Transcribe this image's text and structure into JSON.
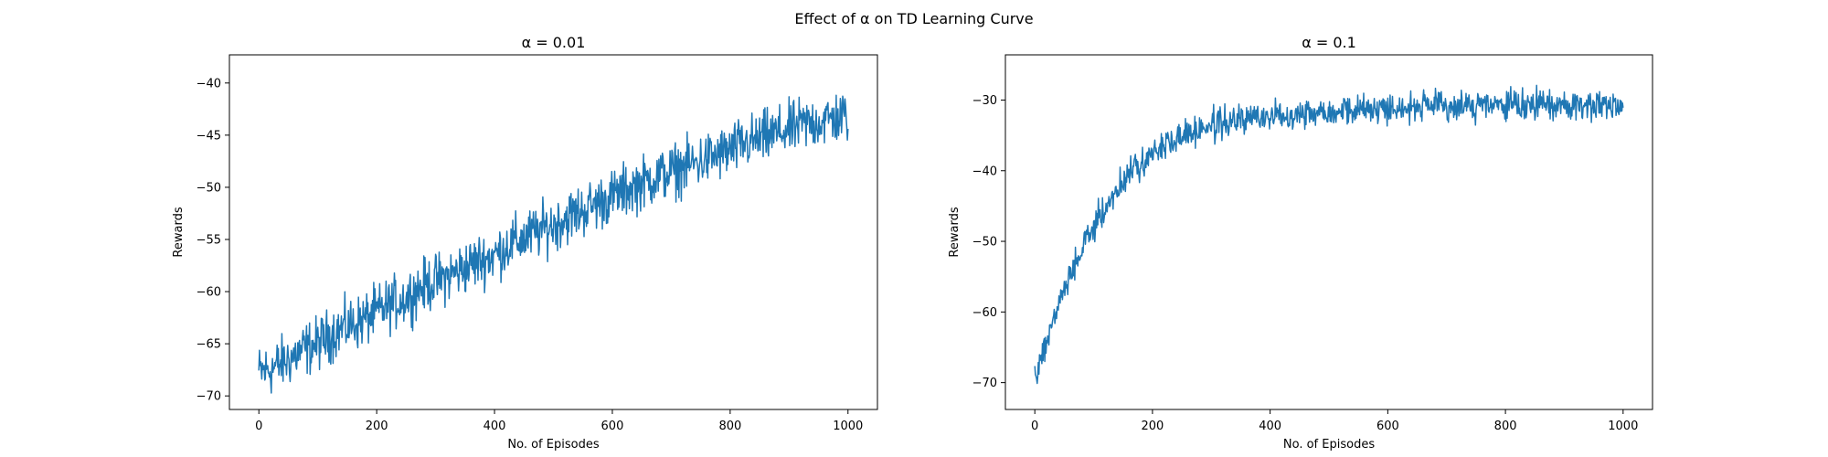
{
  "figure": {
    "suptitle": "Effect of α on TD Learning Curve"
  },
  "colors": {
    "line": "#1f77b4",
    "axes": "#000000",
    "background": "#ffffff"
  },
  "chart_data": [
    {
      "type": "line",
      "title": "α = 0.01",
      "xlabel": "No. of Episodes",
      "ylabel": "Rewards",
      "xlim": [
        -50,
        1050
      ],
      "ylim": [
        -71.3,
        -37.3
      ],
      "xticks": [
        0,
        200,
        400,
        600,
        800,
        1000
      ],
      "yticks": [
        -70,
        -65,
        -60,
        -55,
        -50,
        -45,
        -40
      ],
      "grid": false,
      "legend": "none",
      "series": [
        {
          "x": [
            0,
            25,
            50,
            75,
            100,
            125,
            150,
            175,
            200,
            225,
            250,
            275,
            300,
            325,
            350,
            375,
            400,
            425,
            450,
            475,
            500,
            525,
            550,
            575,
            600,
            625,
            650,
            675,
            700,
            725,
            750,
            775,
            800,
            825,
            850,
            875,
            900,
            925,
            950,
            975,
            1000
          ],
          "values": [
            -67.8,
            -67.3,
            -66.5,
            -65.6,
            -65.0,
            -64.0,
            -63.3,
            -62.8,
            -62.0,
            -61.2,
            -60.6,
            -59.6,
            -59.0,
            -58.4,
            -57.7,
            -57.0,
            -56.5,
            -55.5,
            -54.9,
            -54.2,
            -53.6,
            -52.8,
            -52.2,
            -51.5,
            -50.9,
            -50.2,
            -49.6,
            -49.0,
            -48.5,
            -48.0,
            -47.5,
            -47.0,
            -46.5,
            -45.8,
            -45.4,
            -44.9,
            -44.5,
            -44.0,
            -43.7,
            -43.4,
            -43.2
          ],
          "noise_amplitude": 2.2
        }
      ]
    },
    {
      "type": "line",
      "title": "α = 0.1",
      "xlabel": "No. of Episodes",
      "ylabel": "Rewards",
      "xlim": [
        -50,
        1050
      ],
      "ylim": [
        -73.8,
        -23.6
      ],
      "xticks": [
        0,
        200,
        400,
        600,
        800,
        1000
      ],
      "yticks": [
        -70,
        -60,
        -50,
        -40,
        -30
      ],
      "grid": false,
      "legend": "none",
      "series": [
        {
          "x": [
            0,
            25,
            50,
            75,
            100,
            125,
            150,
            175,
            200,
            250,
            300,
            350,
            400,
            450,
            500,
            550,
            600,
            650,
            700,
            750,
            800,
            850,
            900,
            950,
            1000
          ],
          "values": [
            -69.5,
            -62.5,
            -57.0,
            -52.0,
            -48.0,
            -44.5,
            -41.5,
            -39.3,
            -37.5,
            -35.0,
            -33.6,
            -32.8,
            -32.3,
            -31.8,
            -31.5,
            -31.3,
            -31.1,
            -31.0,
            -30.9,
            -30.8,
            -30.8,
            -30.7,
            -30.7,
            -30.6,
            -30.6
          ],
          "noise_amplitude": 1.8
        }
      ]
    }
  ]
}
